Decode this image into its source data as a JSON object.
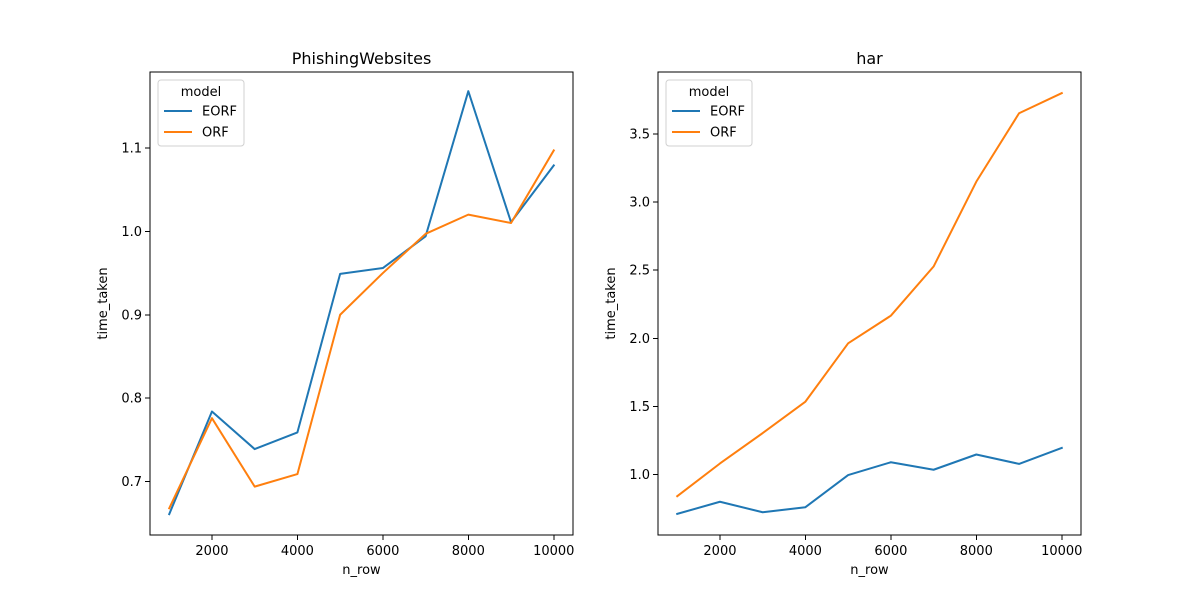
{
  "figure": {
    "background": "#ffffff"
  },
  "chart_data": [
    {
      "type": "line",
      "title": "PhishingWebsites",
      "xlabel": "n_row",
      "ylabel": "time_taken",
      "x": [
        1000,
        2000,
        3000,
        4000,
        5000,
        6000,
        7000,
        8000,
        9000,
        10000
      ],
      "xlim": [
        550,
        10450
      ],
      "ylim": [
        0.636,
        1.191
      ],
      "xticks": [
        2000,
        4000,
        6000,
        8000,
        10000
      ],
      "xtick_labels": [
        "2000",
        "4000",
        "6000",
        "8000",
        "10000"
      ],
      "yticks": [
        0.7,
        0.8,
        0.9,
        1.0,
        1.1
      ],
      "ytick_labels": [
        "0.7",
        "0.8",
        "0.9",
        "1.0",
        "1.1"
      ],
      "legend": {
        "title": "model",
        "position": "top-left"
      },
      "series": [
        {
          "name": "EORF",
          "color": "#1f77b4",
          "values": [
            0.661,
            0.784,
            0.739,
            0.759,
            0.949,
            0.956,
            0.994,
            1.168,
            1.011,
            1.079
          ]
        },
        {
          "name": "ORF",
          "color": "#ff7f0e",
          "values": [
            0.668,
            0.776,
            0.694,
            0.709,
            0.9,
            0.95,
            0.997,
            1.02,
            1.01,
            1.097
          ]
        }
      ]
    },
    {
      "type": "line",
      "title": "har",
      "xlabel": "n_row",
      "ylabel": "time_taken",
      "x": [
        1000,
        2000,
        3000,
        4000,
        5000,
        6000,
        7000,
        8000,
        9000,
        10000
      ],
      "xlim": [
        550,
        10450
      ],
      "ylim": [
        0.556,
        3.955
      ],
      "xticks": [
        2000,
        4000,
        6000,
        8000,
        10000
      ],
      "xtick_labels": [
        "2000",
        "4000",
        "6000",
        "8000",
        "10000"
      ],
      "yticks": [
        1.0,
        1.5,
        2.0,
        2.5,
        3.0,
        3.5
      ],
      "ytick_labels": [
        "1.0",
        "1.5",
        "2.0",
        "2.5",
        "3.0",
        "3.5"
      ],
      "legend": {
        "title": "model",
        "position": "top-left"
      },
      "series": [
        {
          "name": "EORF",
          "color": "#1f77b4",
          "values": [
            0.711,
            0.8,
            0.723,
            0.76,
            0.996,
            1.09,
            1.035,
            1.147,
            1.078,
            1.195
          ]
        },
        {
          "name": "ORF",
          "color": "#ff7f0e",
          "values": [
            0.841,
            1.081,
            1.304,
            1.535,
            1.963,
            2.166,
            2.527,
            3.15,
            3.652,
            3.8
          ]
        }
      ]
    }
  ]
}
